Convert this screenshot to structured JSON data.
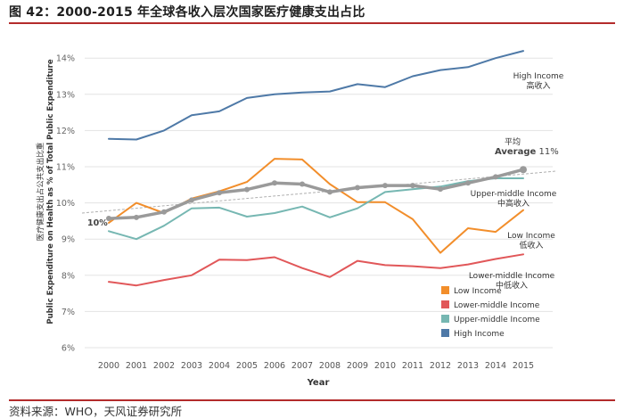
{
  "title": "图 42：2000-2015 年全球各收入层次国家医疗健康支出占比",
  "source": "资料来源：WHO，天风证券研究所",
  "chart_data": {
    "type": "line",
    "x": [
      "2000",
      "2001",
      "2002",
      "2003",
      "2004",
      "2005",
      "2006",
      "2007",
      "2008",
      "2009",
      "2010",
      "2011",
      "2012",
      "2013",
      "2014",
      "2015"
    ],
    "xlabel": "Year",
    "ylabel_cn": "医疗健康支出占公共支出比重",
    "ylabel_en": "Public Expenditure on Health as % of Total Public Expenditure",
    "ylim": [
      6,
      14.5
    ],
    "yticks": [
      "6%",
      "7%",
      "8%",
      "9%",
      "10%",
      "11%",
      "12%",
      "13%",
      "14%"
    ],
    "grid": true,
    "legend_position": "bottom-right",
    "legend": [
      "Low Income",
      "Lower-middle Income",
      "Upper-middle Income",
      "High Income"
    ],
    "series": [
      {
        "name": "High Income",
        "color": "#4e79a7",
        "values": [
          11.77,
          11.75,
          12.0,
          12.42,
          12.53,
          12.9,
          13.0,
          13.05,
          13.08,
          13.28,
          13.2,
          13.5,
          13.67,
          13.75,
          14.0,
          14.2
        ]
      },
      {
        "name": "Low Income",
        "color": "#f28e2b",
        "values": [
          9.45,
          10.0,
          9.72,
          10.12,
          10.32,
          10.58,
          11.22,
          11.2,
          10.52,
          10.02,
          10.02,
          9.55,
          8.62,
          9.3,
          9.2,
          9.8
        ]
      },
      {
        "name": "Upper-middle Income",
        "color": "#76b7b2",
        "values": [
          9.22,
          9.0,
          9.37,
          9.85,
          9.87,
          9.62,
          9.72,
          9.9,
          9.6,
          9.85,
          10.3,
          10.38,
          10.45,
          10.6,
          10.68,
          10.68
        ]
      },
      {
        "name": "Lower-middle Income",
        "color": "#e15759",
        "values": [
          7.82,
          7.72,
          7.87,
          8.0,
          8.43,
          8.42,
          8.5,
          8.2,
          7.95,
          8.4,
          8.28,
          8.25,
          8.2,
          8.3,
          8.45,
          8.58
        ]
      },
      {
        "name": "Average",
        "color": "#9a9a9a",
        "values": [
          9.57,
          9.6,
          9.75,
          10.08,
          10.28,
          10.37,
          10.55,
          10.52,
          10.3,
          10.42,
          10.48,
          10.48,
          10.38,
          10.55,
          10.72,
          10.92
        ]
      }
    ],
    "trendline": {
      "start": 9.72,
      "end": 10.88,
      "color": "#b0b0b0",
      "style": "dashed"
    },
    "annotations": {
      "trend_start": "10%",
      "average_cn": "平均",
      "average_en": "Average",
      "average_value": "11%",
      "high_en": "High Income",
      "high_cn": "高收入",
      "upper_en": "Upper-middle Income",
      "upper_cn": "中高收入",
      "low_en": "Low Income",
      "low_cn": "低收入",
      "lower_en": "Lower-middle Income",
      "lower_cn": "中低收入"
    }
  }
}
